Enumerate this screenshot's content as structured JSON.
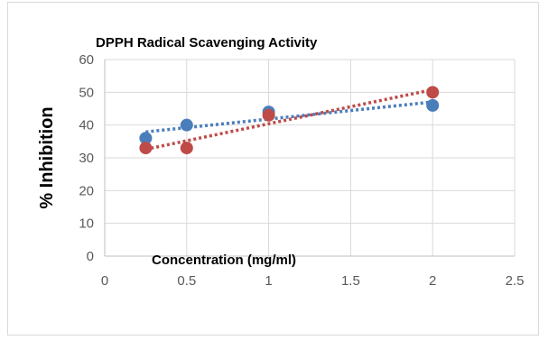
{
  "chart_data": {
    "type": "scatter",
    "title": "DPPH Radical Scavenging Activity",
    "xlabel": "Concentration (mg/ml)",
    "ylabel": "% Inhibition",
    "xlim": [
      0,
      2.5
    ],
    "ylim": [
      0,
      60
    ],
    "x_ticks": [
      "0",
      "0.5",
      "1",
      "1.5",
      "2",
      "2.5"
    ],
    "y_ticks": [
      "0",
      "10",
      "20",
      "30",
      "40",
      "50",
      "60"
    ],
    "grid": true,
    "legend": "none",
    "trendline": "linear, dotted",
    "series": [
      {
        "color": "#4a7ebb",
        "points": [
          {
            "x": 0.25,
            "y": 36
          },
          {
            "x": 0.5,
            "y": 40
          },
          {
            "x": 1,
            "y": 44
          },
          {
            "x": 2,
            "y": 46
          }
        ]
      },
      {
        "color": "#be4b48",
        "points": [
          {
            "x": 0.25,
            "y": 33
          },
          {
            "x": 0.5,
            "y": 33
          },
          {
            "x": 1,
            "y": 43
          },
          {
            "x": 2,
            "y": 50
          }
        ]
      }
    ]
  }
}
